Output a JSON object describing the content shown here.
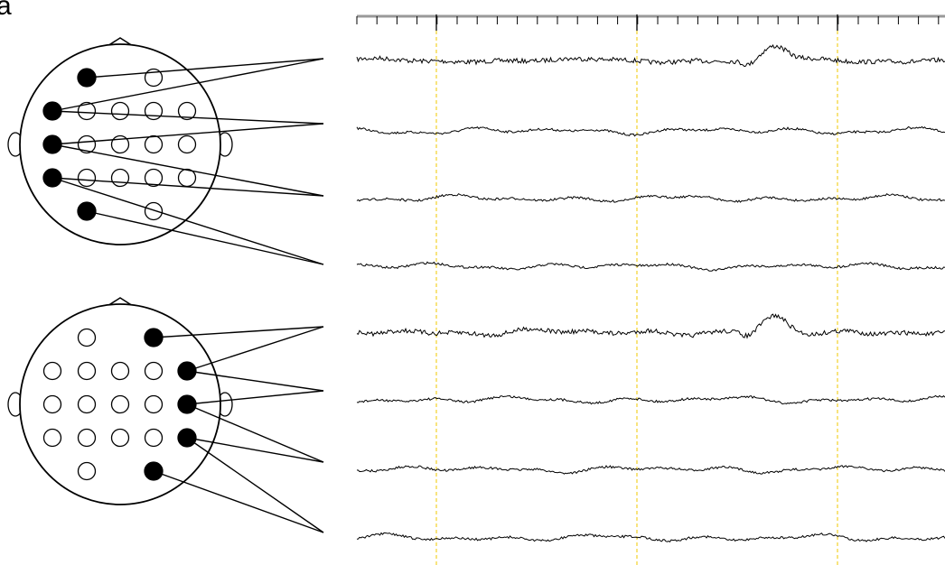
{
  "panel_label": "a"
}
